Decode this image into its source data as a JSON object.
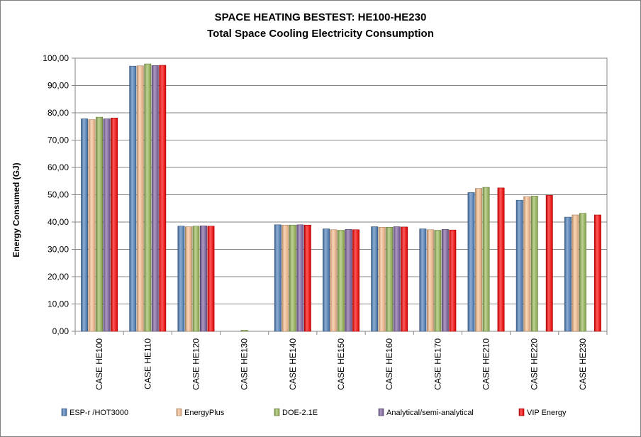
{
  "chart_data": {
    "type": "bar",
    "title": "SPACE HEATING BESTEST: HE100-HE230",
    "subtitle": "Total Space Cooling Electricity Consumption",
    "xlabel": "",
    "ylabel": "Energy Consumed (GJ)",
    "ylim": [
      0,
      100
    ],
    "yticks": [
      "0,00",
      "10,00",
      "20,00",
      "30,00",
      "40,00",
      "50,00",
      "60,00",
      "70,00",
      "80,00",
      "90,00",
      "100,00"
    ],
    "grid": true,
    "legend_position": "bottom",
    "categories": [
      "CASE HE100",
      "CASE HE110",
      "CASE HE120",
      "CASE HE130",
      "CASE HE140",
      "CASE HE150",
      "CASE HE160",
      "CASE HE170",
      "CASE HE210",
      "CASE HE220",
      "CASE HE230"
    ],
    "series": [
      {
        "name": "ESP-r /HOT3000",
        "color": "#4f81bd",
        "values": [
          77.8,
          97.1,
          38.5,
          0,
          39.0,
          37.5,
          38.3,
          37.5,
          50.8,
          48.0,
          41.8
        ]
      },
      {
        "name": "EnergyPlus",
        "color": "#fac090",
        "values": [
          77.5,
          97.2,
          38.3,
          0,
          38.9,
          37.2,
          38.1,
          37.2,
          52.3,
          49.3,
          42.6
        ]
      },
      {
        "name": "DOE-2.1E",
        "color": "#9bbb59",
        "values": [
          78.4,
          97.9,
          38.5,
          0.4,
          38.9,
          37.0,
          38.1,
          37.0,
          52.7,
          49.5,
          43.2
        ]
      },
      {
        "name": "Analytical/semi-analytical",
        "color": "#8064a2",
        "values": [
          77.8,
          97.3,
          38.6,
          0,
          39.0,
          37.3,
          38.3,
          37.3,
          null,
          null,
          null
        ]
      },
      {
        "name": "VIP Energy",
        "color": "#ff0000",
        "values": [
          78.1,
          97.4,
          38.5,
          0,
          38.9,
          37.2,
          38.2,
          37.1,
          52.5,
          49.8,
          42.6
        ]
      }
    ]
  }
}
